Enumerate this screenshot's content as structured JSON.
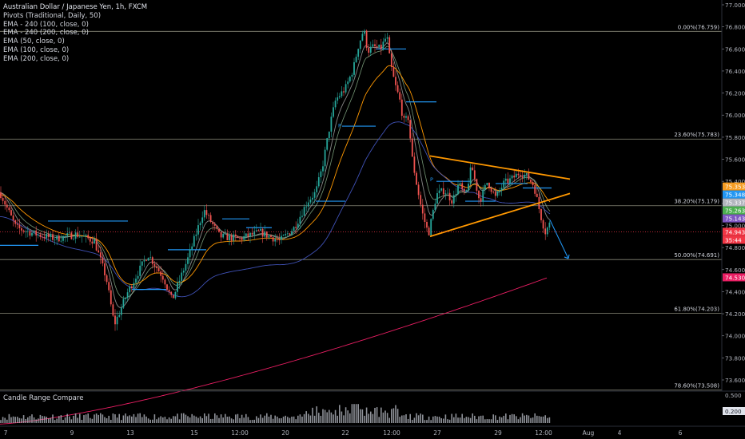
{
  "legend": {
    "title": "Australian Dollar / Japanese Yen, 1h, FXCM",
    "indicators": [
      "Pivots (Traditional, Daily, 50)",
      "EMA - 240 (100, close, 0)",
      "EMA - 240 (200, close, 0)",
      "EMA (50, close, 0)",
      "EMA (100, close, 0)",
      "EMA (200, close, 0)"
    ]
  },
  "subpane": {
    "title": "Candle Range Compare",
    "ticks": [
      "0.500",
      "0.200"
    ],
    "current_value_label": "0.200"
  },
  "chart_data": {
    "type": "candlestick",
    "ylim": [
      73.45,
      77.02
    ],
    "y_ticks": [
      73.6,
      73.8,
      74.0,
      74.2,
      74.4,
      74.6,
      74.8,
      75.0,
      75.2,
      75.4,
      75.6,
      75.8,
      76.0,
      76.2,
      76.4,
      76.6,
      76.8,
      77.0
    ],
    "x_ticks": [
      "7",
      "9",
      "13",
      "15",
      "12:00",
      "20",
      "22",
      "12:00",
      "27",
      "29",
      "12:00",
      "Aug",
      "4",
      "6"
    ],
    "fib_levels": [
      {
        "label": "0.00%(76.759)",
        "value": 76.759
      },
      {
        "label": "23.60%(75.783)",
        "value": 75.783
      },
      {
        "label": "38.20%(75.179)",
        "value": 75.179
      },
      {
        "label": "50.00%(74.691)",
        "value": 74.691
      },
      {
        "label": "61.80%(74.203)",
        "value": 74.203
      },
      {
        "label": "78.60%(73.508)",
        "value": 73.508
      }
    ],
    "price_labels": [
      {
        "text": "75.353",
        "value": 75.353,
        "color": "#f59b21"
      },
      {
        "text": "75.348",
        "value": 75.348,
        "color": "#2196f3"
      },
      {
        "text": "75.337",
        "value": 75.337,
        "color": "#b2b5be"
      },
      {
        "text": "75.263",
        "value": 75.263,
        "color": "#4caf50"
      },
      {
        "text": "75.143",
        "value": 75.143,
        "color": "#7e57c2"
      },
      {
        "text": "74.943",
        "value": 74.943,
        "color": "#f23645"
      },
      {
        "text": "35:44",
        "value": 74.87,
        "color": "#f23645"
      },
      {
        "text": "74.530",
        "value": 74.53,
        "color": "#e91e63"
      }
    ],
    "pivot_markers": [
      "P",
      "P"
    ],
    "price_line": 74.943,
    "triangle": {
      "upper": [
        [
          75.63,
          75.42
        ]
      ],
      "lower": [
        [
          74.9,
          75.29
        ]
      ]
    },
    "colors": {
      "up": "#26a69a",
      "down": "#ef5350",
      "ema50": "#9e9e9e",
      "ema100": "#ff9800",
      "ema200": "#3f51b5",
      "ema240_100": "#e0e0e0",
      "ema240_200": "#e91e63",
      "pivot": "#2196f3",
      "triangle": "#ff9800",
      "arrow": "#2196f3"
    }
  }
}
